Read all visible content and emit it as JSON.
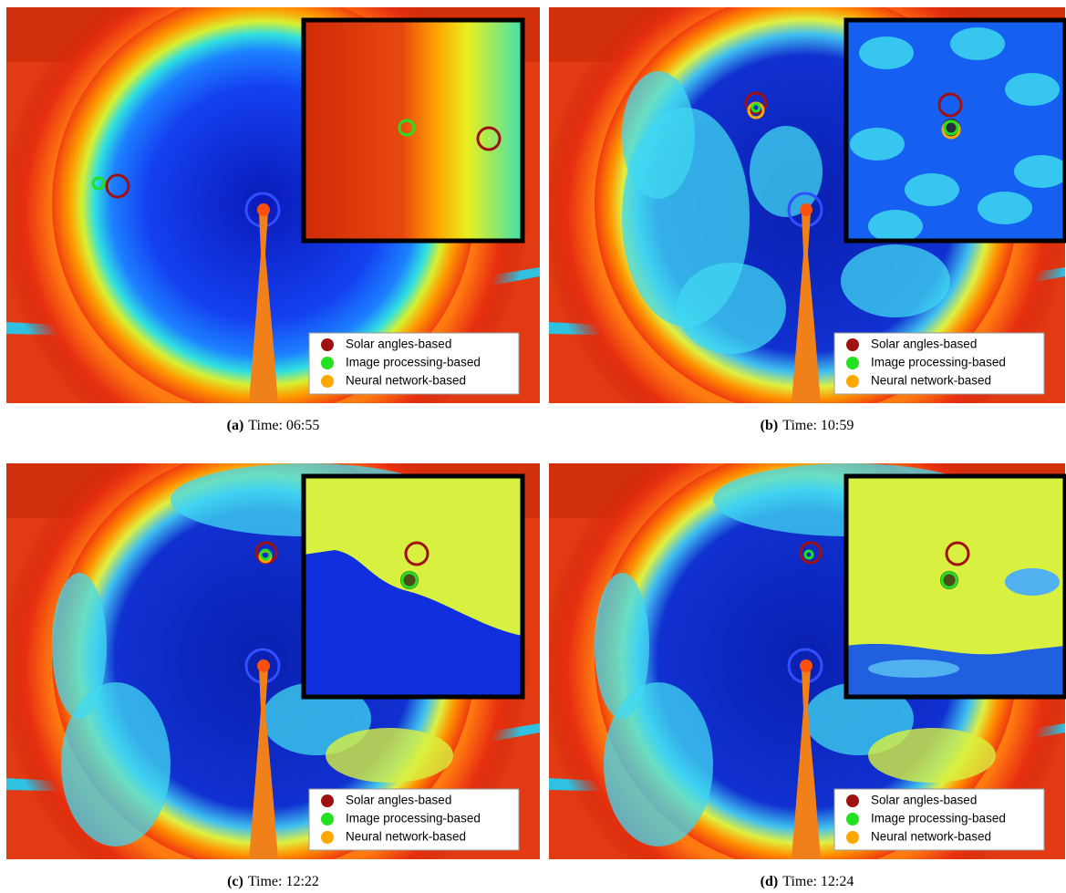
{
  "legend": [
    "Solar angles-based",
    "Image processing-based",
    "Neural network-based"
  ],
  "legend_colors": [
    "#a01010",
    "#22e022",
    "#ffa800"
  ],
  "panels": [
    {
      "label": "(a)",
      "caption": "Time: 06:55"
    },
    {
      "label": "(b)",
      "caption": "Time: 10:59"
    },
    {
      "label": "(c)",
      "caption": "Time: 12:22"
    },
    {
      "label": "(d)",
      "caption": "Time: 12:24"
    }
  ]
}
